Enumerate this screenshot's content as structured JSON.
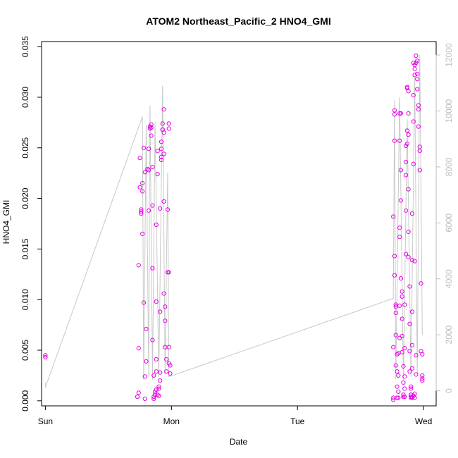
{
  "chart_data": {
    "type": "scatter",
    "title": "ATOM2 Northeast_Pacific_2 HNO4_GMI",
    "xlabel": "Date",
    "ylabel": "HNO4_GMI",
    "x_ticks": [
      "Sun",
      "Mon",
      "Tue",
      "Wed"
    ],
    "y_ticks": [
      "0.000",
      "0.005",
      "0.010",
      "0.015",
      "0.020",
      "0.025",
      "0.030",
      "0.035"
    ],
    "y2_ticks": [
      "0",
      "2000",
      "4000",
      "6000",
      "8000",
      "10000",
      "12000"
    ],
    "xlim": [
      -0.03,
      3.1
    ],
    "ylim": [
      -0.0005,
      0.0355
    ],
    "y2lim": [
      -540,
      12480
    ],
    "grid": false,
    "colors": {
      "points": "#e600e6",
      "altitude_line": "#c8c8c8",
      "right_axis": "#bdbdbd"
    },
    "series": [
      {
        "values": [
          [
            0.0,
            0.0043
          ],
          [
            0.0,
            0.0045
          ],
          [
            0.73,
            0.0004
          ],
          [
            0.74,
            0.0008
          ],
          [
            0.74,
            0.0052
          ],
          [
            0.74,
            0.0134
          ],
          [
            0.75,
            0.0211
          ],
          [
            0.75,
            0.024
          ],
          [
            0.76,
            0.0187
          ],
          [
            0.76,
            0.0189
          ],
          [
            0.76,
            0.0185
          ],
          [
            0.77,
            0.0215
          ],
          [
            0.77,
            0.0207
          ],
          [
            0.77,
            0.0165
          ],
          [
            0.78,
            0.025
          ],
          [
            0.78,
            0.0097
          ],
          [
            0.79,
            0.0226
          ],
          [
            0.79,
            0.0024
          ],
          [
            0.79,
            0.0002
          ],
          [
            0.8,
            0.0039
          ],
          [
            0.8,
            0.0071
          ],
          [
            0.81,
            0.0229
          ],
          [
            0.82,
            0.0228
          ],
          [
            0.82,
            0.0249
          ],
          [
            0.82,
            0.0188
          ],
          [
            0.83,
            0.0269
          ],
          [
            0.83,
            0.0271
          ],
          [
            0.84,
            0.0273
          ],
          [
            0.84,
            0.027
          ],
          [
            0.84,
            0.0262
          ],
          [
            0.85,
            0.0231
          ],
          [
            0.85,
            0.0193
          ],
          [
            0.85,
            0.0131
          ],
          [
            0.85,
            0.006
          ],
          [
            0.86,
            0.0025
          ],
          [
            0.86,
            0.0004
          ],
          [
            0.86,
            0.0002
          ],
          [
            0.87,
            0.0006
          ],
          [
            0.87,
            0.0009
          ],
          [
            0.88,
            0.0011
          ],
          [
            0.88,
            0.0029
          ],
          [
            0.88,
            0.0041
          ],
          [
            0.88,
            0.0098
          ],
          [
            0.88,
            0.0174
          ],
          [
            0.89,
            0.0224
          ],
          [
            0.89,
            0.0247
          ],
          [
            0.89,
            0.0006
          ],
          [
            0.9,
            0.0005
          ],
          [
            0.9,
            0.0012
          ],
          [
            0.9,
            0.0014
          ],
          [
            0.91,
            0.002
          ],
          [
            0.91,
            0.0028
          ],
          [
            0.91,
            0.0088
          ],
          [
            0.91,
            0.019
          ],
          [
            0.92,
            0.0256
          ],
          [
            0.92,
            0.0249
          ],
          [
            0.92,
            0.0241
          ],
          [
            0.92,
            0.0238
          ],
          [
            0.93,
            0.0274
          ],
          [
            0.93,
            0.0268
          ],
          [
            0.93,
            0.0268
          ],
          [
            0.94,
            0.0288
          ],
          [
            0.94,
            0.0265
          ],
          [
            0.94,
            0.0244
          ],
          [
            0.94,
            0.0197
          ],
          [
            0.94,
            0.0106
          ],
          [
            0.95,
            0.0093
          ],
          [
            0.95,
            0.0079
          ],
          [
            0.95,
            0.0053
          ],
          [
            0.96,
            0.0041
          ],
          [
            0.96,
            0.0029
          ],
          [
            0.97,
            0.0127
          ],
          [
            0.97,
            0.0189
          ],
          [
            0.98,
            0.0127
          ],
          [
            0.98,
            0.0053
          ],
          [
            0.98,
            0.0037
          ],
          [
            0.99,
            0.0035
          ],
          [
            0.99,
            0.0027
          ],
          [
            0.98,
            0.0269
          ],
          [
            0.98,
            0.0274
          ],
          [
            2.76,
            0.0001
          ],
          [
            2.76,
            0.0003
          ],
          [
            2.76,
            0.0053
          ],
          [
            2.76,
            0.0182
          ],
          [
            2.77,
            0.0287
          ],
          [
            2.77,
            0.0283
          ],
          [
            2.77,
            0.0257
          ],
          [
            2.77,
            0.0143
          ],
          [
            2.77,
            0.0124
          ],
          [
            2.78,
            0.0035
          ],
          [
            2.78,
            0.0087
          ],
          [
            2.78,
            0.0093
          ],
          [
            2.78,
            0.0095
          ],
          [
            2.78,
            0.0065
          ],
          [
            2.79,
            0.0046
          ],
          [
            2.79,
            0.0029
          ],
          [
            2.79,
            0.0014
          ],
          [
            2.79,
            0.0003
          ],
          [
            2.8,
            0.0003
          ],
          [
            2.8,
            0.0009
          ],
          [
            2.8,
            0.0025
          ],
          [
            2.8,
            0.0047
          ],
          [
            2.81,
            0.0062
          ],
          [
            2.81,
            0.0094
          ],
          [
            2.81,
            0.0162
          ],
          [
            2.81,
            0.0171
          ],
          [
            2.81,
            0.0257
          ],
          [
            2.81,
            0.0284
          ],
          [
            2.82,
            0.0284
          ],
          [
            2.82,
            0.0228
          ],
          [
            2.82,
            0.0198
          ],
          [
            2.82,
            0.0121
          ],
          [
            2.83,
            0.0103
          ],
          [
            2.83,
            0.0108
          ],
          [
            2.83,
            0.0081
          ],
          [
            2.83,
            0.0064
          ],
          [
            2.83,
            0.0048
          ],
          [
            2.84,
            0.0034
          ],
          [
            2.84,
            0.0018
          ],
          [
            2.84,
            0.0006
          ],
          [
            2.84,
            0.0004
          ],
          [
            2.85,
            0.0004
          ],
          [
            2.85,
            0.0012
          ],
          [
            2.85,
            0.0024
          ],
          [
            2.85,
            0.0052
          ],
          [
            2.85,
            0.0095
          ],
          [
            2.86,
            0.0145
          ],
          [
            2.86,
            0.0188
          ],
          [
            2.86,
            0.0223
          ],
          [
            2.86,
            0.0236
          ],
          [
            2.86,
            0.0252
          ],
          [
            2.87,
            0.0254
          ],
          [
            2.87,
            0.0267
          ],
          [
            2.87,
            0.0309
          ],
          [
            2.87,
            0.031
          ],
          [
            2.88,
            0.0306
          ],
          [
            2.88,
            0.0284
          ],
          [
            2.88,
            0.0263
          ],
          [
            2.88,
            0.0209
          ],
          [
            2.88,
            0.0167
          ],
          [
            2.88,
            0.0142
          ],
          [
            2.89,
            0.0113
          ],
          [
            2.89,
            0.0076
          ],
          [
            2.89,
            0.0049
          ],
          [
            2.89,
            0.0029
          ],
          [
            2.9,
            0.0012
          ],
          [
            2.9,
            0.0006
          ],
          [
            2.9,
            0.0004
          ],
          [
            2.9,
            0.0006
          ],
          [
            2.9,
            0.0014
          ],
          [
            2.91,
            0.0032
          ],
          [
            2.91,
            0.0055
          ],
          [
            2.91,
            0.0088
          ],
          [
            2.91,
            0.0139
          ],
          [
            2.91,
            0.0185
          ],
          [
            2.92,
            0.0234
          ],
          [
            2.92,
            0.0276
          ],
          [
            2.92,
            0.0302
          ],
          [
            2.92,
            0.0334
          ],
          [
            2.93,
            0.0332
          ],
          [
            2.93,
            0.0328
          ],
          [
            2.93,
            0.0322
          ],
          [
            2.94,
            0.0334
          ],
          [
            2.94,
            0.0341
          ],
          [
            2.95,
            0.0336
          ],
          [
            2.95,
            0.0323
          ],
          [
            2.95,
            0.0318
          ],
          [
            2.95,
            0.0308
          ],
          [
            2.96,
            0.0292
          ],
          [
            2.96,
            0.0288
          ],
          [
            2.96,
            0.0271
          ],
          [
            2.97,
            0.0251
          ],
          [
            2.97,
            0.0247
          ],
          [
            2.97,
            0.0228
          ],
          [
            2.98,
            0.0116
          ],
          [
            2.98,
            0.0049
          ],
          [
            2.99,
            0.0046
          ],
          [
            2.99,
            0.0025
          ],
          [
            2.99,
            0.0022
          ],
          [
            2.99,
            0.002
          ],
          [
            2.9,
            0.0003
          ],
          [
            2.91,
            0.0003
          ],
          [
            2.92,
            0.0005
          ],
          [
            2.93,
            0.0003
          ],
          [
            2.93,
            0.0007
          ],
          [
            2.94,
            0.0026
          ],
          [
            2.94,
            0.0045
          ],
          [
            2.93,
            0.0138
          ]
        ]
      }
    ]
  }
}
